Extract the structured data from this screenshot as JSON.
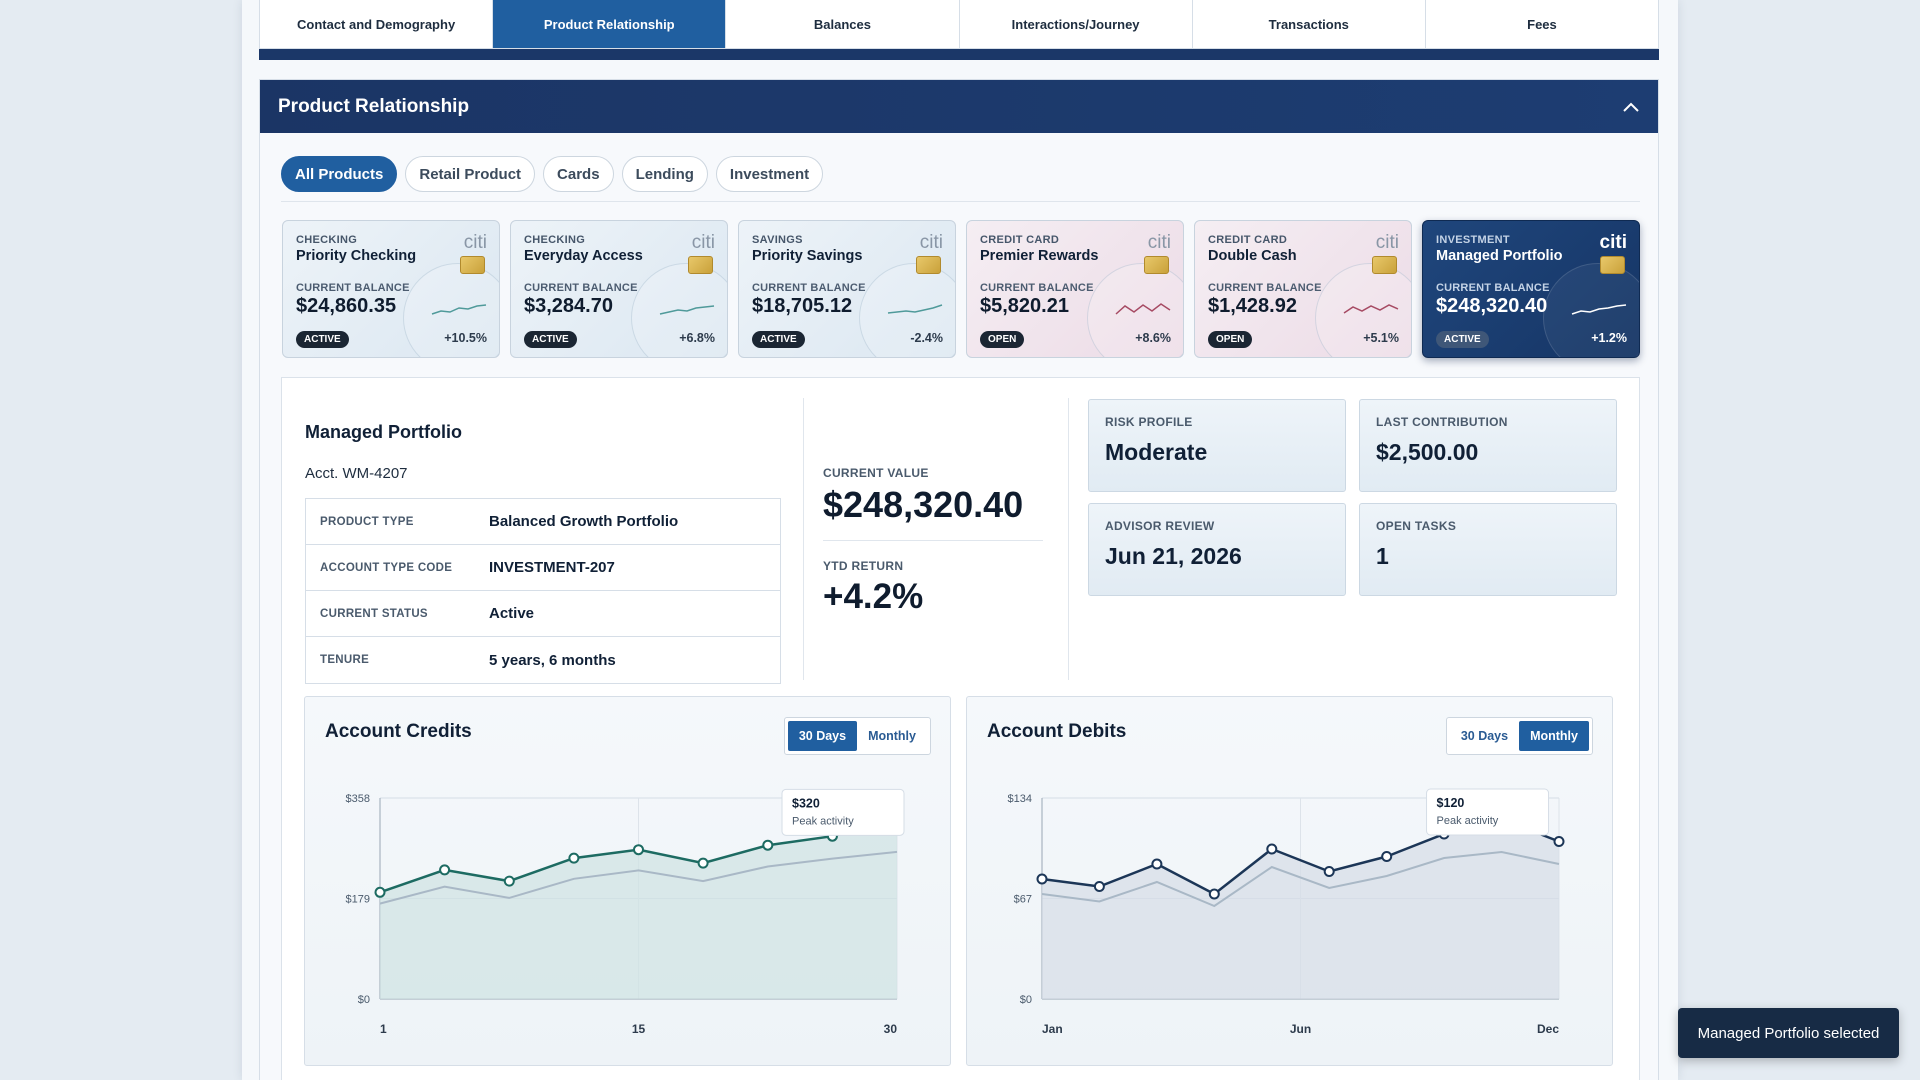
{
  "tabs": [
    {
      "label": "Contact and Demography",
      "active": false
    },
    {
      "label": "Product Relationship",
      "active": true
    },
    {
      "label": "Balances",
      "active": false
    },
    {
      "label": "Interactions/Journey",
      "active": false
    },
    {
      "label": "Transactions",
      "active": false
    },
    {
      "label": "Fees",
      "active": false
    }
  ],
  "section": {
    "title": "Product Relationship",
    "collapse_icon": "chevron-up-icon"
  },
  "filters": [
    {
      "label": "All Products",
      "active": true
    },
    {
      "label": "Retail Product",
      "active": false
    },
    {
      "label": "Cards",
      "active": false
    },
    {
      "label": "Lending",
      "active": false
    },
    {
      "label": "Investment",
      "active": false
    }
  ],
  "cards": [
    {
      "type": "CHECKING",
      "name": "Priority Checking",
      "balance_label": "CURRENT BALANCE",
      "balance": "$24,860.35",
      "status": "ACTIVE",
      "change": "+10.5%",
      "logo": "citi",
      "theme": "blue",
      "spark_color": "#4f9a9a",
      "spark": [
        0.3,
        0.45,
        0.4,
        0.6,
        0.55,
        0.7,
        0.75
      ]
    },
    {
      "type": "CHECKING",
      "name": "Everyday Access",
      "balance_label": "CURRENT BALANCE",
      "balance": "$3,284.70",
      "status": "ACTIVE",
      "change": "+6.8%",
      "logo": "citi",
      "theme": "blue",
      "spark_color": "#4f9a9a",
      "spark": [
        0.3,
        0.4,
        0.5,
        0.45,
        0.6,
        0.65,
        0.7
      ]
    },
    {
      "type": "SAVINGS",
      "name": "Priority Savings",
      "balance_label": "CURRENT BALANCE",
      "balance": "$18,705.12",
      "status": "ACTIVE",
      "change": "-2.4%",
      "logo": "citi",
      "theme": "blue",
      "spark_color": "#4f9a9a",
      "spark": [
        0.35,
        0.4,
        0.45,
        0.4,
        0.5,
        0.6,
        0.75
      ]
    },
    {
      "type": "CREDIT CARD",
      "name": "Premier Rewards",
      "balance_label": "CURRENT BALANCE",
      "balance": "$5,820.21",
      "status": "OPEN",
      "change": "+8.6%",
      "logo": "citi",
      "theme": "pink",
      "spark_color": "#a64a63",
      "spark": [
        0.3,
        0.7,
        0.4,
        0.75,
        0.45,
        0.8,
        0.5
      ]
    },
    {
      "type": "CREDIT CARD",
      "name": "Double Cash",
      "balance_label": "CURRENT BALANCE",
      "balance": "$1,428.92",
      "status": "OPEN",
      "change": "+5.1%",
      "logo": "citi",
      "theme": "pink",
      "spark_color": "#a64a63",
      "spark": [
        0.35,
        0.65,
        0.45,
        0.7,
        0.5,
        0.75,
        0.55
      ]
    },
    {
      "type": "INVESTMENT",
      "name": "Managed Portfolio",
      "balance_label": "CURRENT BALANCE",
      "balance": "$248,320.40",
      "status": "ACTIVE",
      "change": "+1.2%",
      "logo": "citi",
      "theme": "dark",
      "spark_color": "#ffffff",
      "spark": [
        0.3,
        0.45,
        0.4,
        0.55,
        0.6,
        0.7,
        0.75
      ]
    }
  ],
  "detail": {
    "name": "Managed Portfolio",
    "account": "Acct. WM-4207",
    "rows": [
      {
        "key": "PRODUCT TYPE",
        "value": "Balanced Growth Portfolio"
      },
      {
        "key": "ACCOUNT TYPE CODE",
        "value": "INVESTMENT-207"
      },
      {
        "key": "CURRENT STATUS",
        "value": "Active"
      },
      {
        "key": "TENURE",
        "value": "5 years, 6 months"
      }
    ],
    "current_value_label": "CURRENT VALUE",
    "current_value": "$248,320.40",
    "ytd_label": "YTD RETURN",
    "ytd_value": "+4.2%",
    "stats": [
      {
        "label": "RISK PROFILE",
        "value": "Moderate"
      },
      {
        "label": "LAST CONTRIBUTION",
        "value": "$2,500.00"
      },
      {
        "label": "ADVISOR REVIEW",
        "value": "Jun 21, 2026"
      },
      {
        "label": "OPEN TASKS",
        "value": "1"
      }
    ]
  },
  "chart_data": [
    {
      "type": "area",
      "title": "Account Credits",
      "toggle": [
        {
          "label": "30 Days",
          "active": true
        },
        {
          "label": "Monthly",
          "active": false
        }
      ],
      "x_ticks": [
        "1",
        "15",
        "30"
      ],
      "y_ticks": [
        "$358",
        "$179",
        "$0"
      ],
      "ylim": [
        0,
        358
      ],
      "line_color": "#1d6b62",
      "area_color": "#cfe3e2",
      "series": [
        {
          "values": [
            190,
            230,
            210,
            251,
            266,
            242,
            274,
            290,
            320
          ]
        },
        {
          "values": [
            170,
            200,
            180,
            214,
            229,
            210,
            236,
            250,
            262
          ]
        }
      ],
      "tooltip": {
        "value": "$320",
        "note": "Peak activity"
      }
    },
    {
      "type": "area",
      "title": "Account Debits",
      "toggle": [
        {
          "label": "30 Days",
          "active": false
        },
        {
          "label": "Monthly",
          "active": true
        }
      ],
      "x_ticks": [
        "Jan",
        "Jun",
        "Dec"
      ],
      "y_ticks": [
        "$134",
        "$67",
        "$0"
      ],
      "ylim": [
        0,
        134
      ],
      "line_color": "#1c3657",
      "area_color": "#d5dde7",
      "series": [
        {
          "values": [
            80,
            75,
            90,
            70,
            100,
            85,
            95,
            110,
            120,
            105
          ]
        },
        {
          "values": [
            70,
            65,
            78,
            62,
            88,
            74,
            82,
            94,
            98,
            90
          ]
        }
      ],
      "tooltip": {
        "value": "$120",
        "note": "Peak activity"
      }
    }
  ],
  "toast": "Managed Portfolio selected"
}
